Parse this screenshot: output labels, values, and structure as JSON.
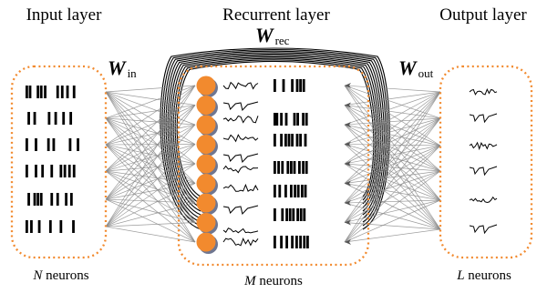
{
  "title_input": "Input layer",
  "title_recurrent": "Recurrent layer",
  "title_output": "Output layer",
  "w_in": {
    "symbol": "W",
    "sub": "in"
  },
  "w_rec": {
    "symbol": "W",
    "sub": "rec"
  },
  "w_out": {
    "symbol": "W",
    "sub": "out"
  },
  "input_count": {
    "var": "N",
    "text": " neurons"
  },
  "recurrent_count": {
    "var": "M",
    "text": " neurons"
  },
  "output_count": {
    "var": "L",
    "text": " neurons"
  },
  "colors": {
    "neuron": "#f28a2e",
    "neuron_shade": "#6f7690",
    "box_border": "#f28a2e",
    "connection": "#8a8a8a",
    "loop": "#000000"
  },
  "spike_rows": {
    "input": [
      [
        0,
        0.05,
        0.17,
        0.22,
        0.28,
        0.47,
        0.54,
        0.62,
        0.72
      ],
      [
        0.03,
        0.12,
        0.34,
        0.44,
        0.56,
        0.67
      ],
      [
        0.0,
        0.14,
        0.33,
        0.41,
        0.66,
        0.78
      ],
      [
        0.0,
        0.14,
        0.24,
        0.38,
        0.52,
        0.58,
        0.65,
        0.72
      ],
      [
        0.03,
        0.12,
        0.17,
        0.22,
        0.38,
        0.47,
        0.6,
        0.68
      ],
      [
        0.0,
        0.07,
        0.19,
        0.36,
        0.52,
        0.71
      ]
    ],
    "recurrent": [
      [
        0.0,
        0.16,
        0.32,
        0.41,
        0.47,
        0.53
      ],
      [
        0.0,
        0.04,
        0.12,
        0.21,
        0.36,
        0.42,
        0.52,
        0.58
      ],
      [
        0.0,
        0.12,
        0.2,
        0.26,
        0.32,
        0.41,
        0.47,
        0.56
      ],
      [
        0.0,
        0.07,
        0.14,
        0.24,
        0.3,
        0.36,
        0.45,
        0.52,
        0.58
      ],
      [
        0.0,
        0.09,
        0.2,
        0.3,
        0.37,
        0.43,
        0.5,
        0.56
      ],
      [
        0.0,
        0.14,
        0.22,
        0.28,
        0.34,
        0.42,
        0.48,
        0.54
      ],
      [
        0.0,
        0.12,
        0.22,
        0.32,
        0.4,
        0.47,
        0.54,
        0.6
      ]
    ]
  }
}
